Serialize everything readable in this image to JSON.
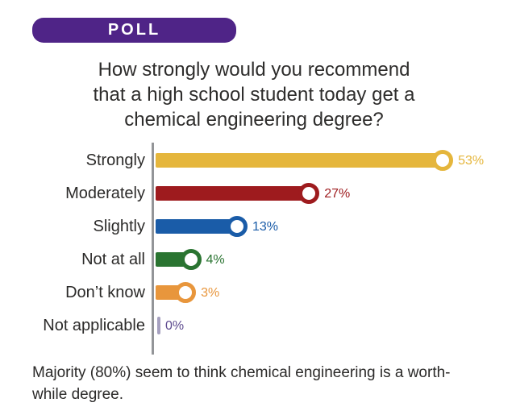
{
  "badge": {
    "label": "POLL",
    "color": "#4F2487"
  },
  "header": {
    "title_lines": [
      "How strongly would you recommend",
      "that a high school student today get a",
      "chemical engineering degree?"
    ]
  },
  "chart_data": {
    "type": "bar",
    "orientation": "horizontal",
    "title": "How strongly would you recommend that a high school student today get a chemical engineering degree?",
    "categories": [
      "Strongly",
      "Moderately",
      "Slightly",
      "Not at all",
      "Don’t know",
      "Not applicable"
    ],
    "values": [
      53,
      27,
      13,
      4,
      3,
      0
    ],
    "value_labels": [
      "53%",
      "27%",
      "13%",
      "4%",
      "3%",
      "0%"
    ],
    "unit": "%",
    "colors": [
      "#E5B63C",
      "#9E1B1E",
      "#1A5CA8",
      "#2A7431",
      "#E8963C",
      "#5D4A8F"
    ],
    "axis_color": "#939598",
    "xlim": [
      0,
      60
    ],
    "grid": false,
    "legend": false,
    "marker": "open-circle-at-bar-end"
  },
  "footnote": {
    "lines": [
      "Majority (80%) seem to think chemical engineering is a worth-",
      "while degree."
    ]
  }
}
